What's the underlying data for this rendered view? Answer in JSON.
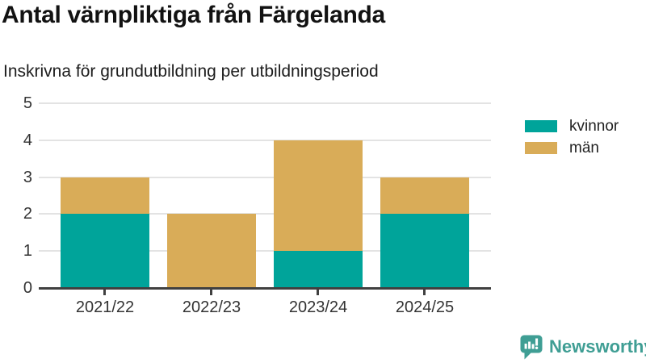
{
  "chart": {
    "title": "Antal värnpliktiga från Färgelanda",
    "subtitle": "Inskrivna för grundutbildning per utbildningsperiod"
  },
  "chart_data": {
    "type": "bar",
    "stacked": true,
    "title": "Antal värnpliktiga från Färgelanda",
    "subtitle": "Inskrivna för grundutbildning per utbildningsperiod",
    "categories": [
      "2021/22",
      "2022/23",
      "2023/24",
      "2024/25"
    ],
    "series": [
      {
        "name": "kvinnor",
        "color": "#00a49a",
        "values": [
          2,
          0,
          1,
          2
        ]
      },
      {
        "name": "män",
        "color": "#d9ac58",
        "values": [
          1,
          2,
          3,
          1
        ]
      }
    ],
    "xlabel": "",
    "ylabel": "",
    "ylim": [
      0,
      5
    ],
    "yticks": [
      0,
      1,
      2,
      3,
      4,
      5
    ],
    "grid": true,
    "grid_color": "#e3e3e3",
    "axis_color": "#404040",
    "legend_position": "right"
  },
  "branding": {
    "logo_text": "Newsworthy",
    "logo_color": "#3f9e94"
  }
}
